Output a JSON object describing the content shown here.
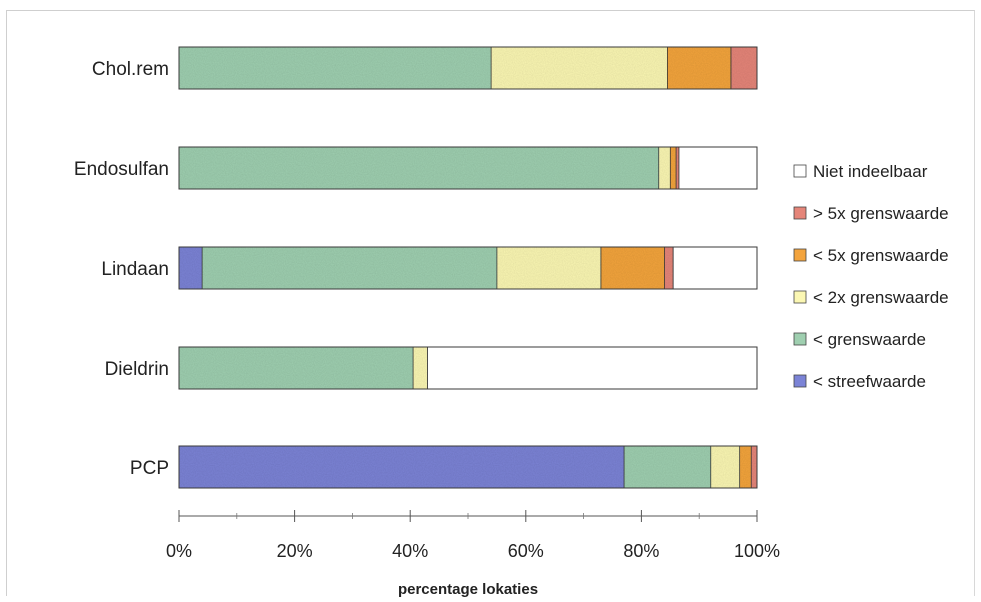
{
  "chart_data": {
    "type": "bar",
    "orientation": "horizontal",
    "stacked": "percent",
    "categories": [
      "Chol.rem",
      "Endosulfan",
      "Lindaan",
      "Dieldrin",
      "PCP"
    ],
    "series": [
      {
        "name": "< streefwaarde",
        "color": "#7b83d6",
        "values": [
          0,
          0,
          4,
          0,
          77
        ]
      },
      {
        "name": "< grenswaarde",
        "color": "#9fcfb0",
        "values": [
          54,
          83,
          51,
          40.5,
          15
        ]
      },
      {
        "name": "< 2x grenswaarde",
        "color": "#fbf7b3",
        "values": [
          30.5,
          2,
          18,
          2.5,
          5
        ]
      },
      {
        "name": "< 5x grenswaarde",
        "color": "#f3a43e",
        "values": [
          11,
          1,
          11,
          0,
          2
        ]
      },
      {
        "name": "> 5x grenswaarde",
        "color": "#e58579",
        "values": [
          4.5,
          0.5,
          1.5,
          0,
          1
        ]
      },
      {
        "name": "Niet indeelbaar",
        "color": "#ffffff",
        "values": [
          0,
          13.5,
          14.5,
          57,
          0
        ]
      }
    ],
    "legend_order": [
      "Niet indeelbaar",
      "> 5x grenswaarde",
      "< 5x grenswaarde",
      "< 2x grenswaarde",
      "< grenswaarde",
      "< streefwaarde"
    ],
    "x_ticks": [
      "0%",
      "20%",
      "40%",
      "60%",
      "80%",
      "100%"
    ],
    "xlim": [
      0,
      100
    ],
    "xlabel": "percentage lokaties",
    "ylabel": "",
    "title": "",
    "legend_position": "right",
    "grid": false
  }
}
